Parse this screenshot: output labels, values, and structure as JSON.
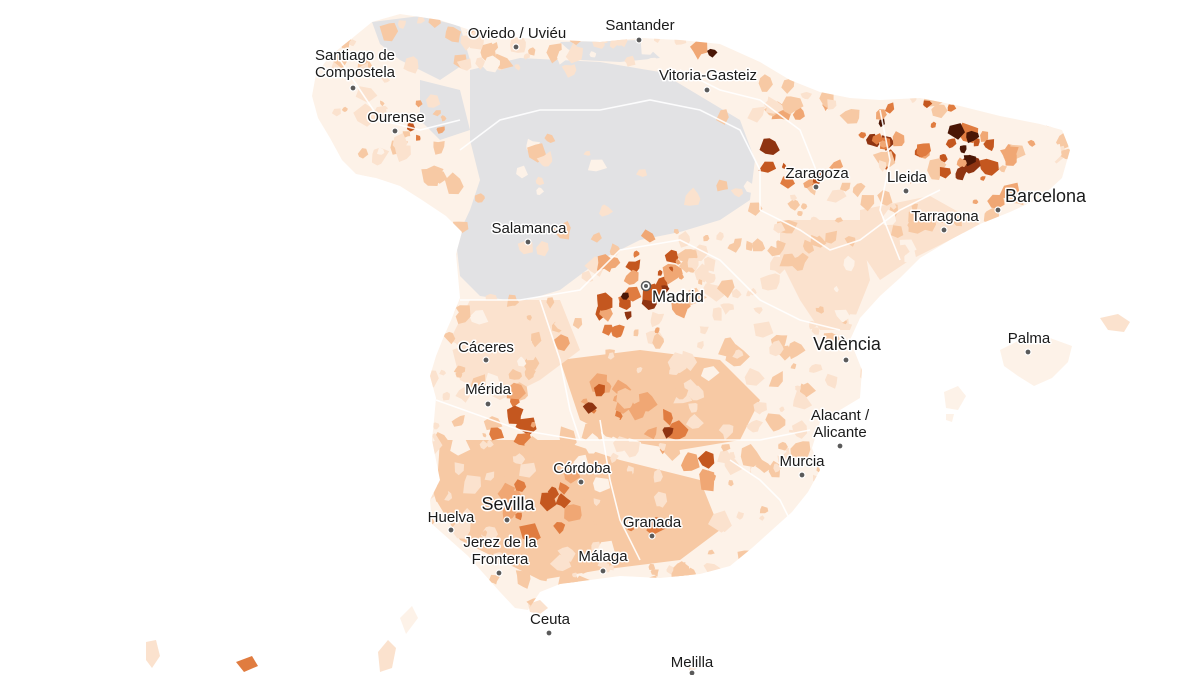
{
  "map": {
    "colors": {
      "no_data": "#e2e2e4",
      "scale": [
        "#fdf2e8",
        "#fbe2ce",
        "#f7c9a4",
        "#f0a774",
        "#e07c40",
        "#c4571f",
        "#8f3411",
        "#4a1605"
      ],
      "label_text": "#1a1a1a",
      "dot": "#5a5a5a"
    },
    "cities": [
      {
        "name": "Santiago de",
        "name2": "Compostela",
        "kind": "city"
      },
      {
        "name": "Oviedo / Uviéu",
        "kind": "city"
      },
      {
        "name": "Santander",
        "kind": "city"
      },
      {
        "name": "Vitoria-Gasteiz",
        "kind": "city"
      },
      {
        "name": "Ourense",
        "kind": "city"
      },
      {
        "name": "Zaragoza",
        "kind": "city"
      },
      {
        "name": "Lleida",
        "kind": "city"
      },
      {
        "name": "Barcelona",
        "kind": "major"
      },
      {
        "name": "Tarragona",
        "kind": "city"
      },
      {
        "name": "Salamanca",
        "kind": "city"
      },
      {
        "name": "Madrid",
        "kind": "capital"
      },
      {
        "name": "València",
        "kind": "major"
      },
      {
        "name": "Palma",
        "kind": "city"
      },
      {
        "name": "Cáceres",
        "kind": "city"
      },
      {
        "name": "Mérida",
        "kind": "city"
      },
      {
        "name": "Alacant /",
        "name2": "Alicante",
        "kind": "city"
      },
      {
        "name": "Murcia",
        "kind": "city"
      },
      {
        "name": "Córdoba",
        "kind": "city"
      },
      {
        "name": "Sevilla",
        "kind": "major"
      },
      {
        "name": "Huelva",
        "kind": "city"
      },
      {
        "name": "Granada",
        "kind": "city"
      },
      {
        "name": "Jerez de la",
        "name2": "Frontera",
        "kind": "city"
      },
      {
        "name": "Málaga",
        "kind": "city"
      },
      {
        "name": "Ceuta",
        "kind": "city"
      },
      {
        "name": "Melilla",
        "kind": "city"
      }
    ]
  }
}
